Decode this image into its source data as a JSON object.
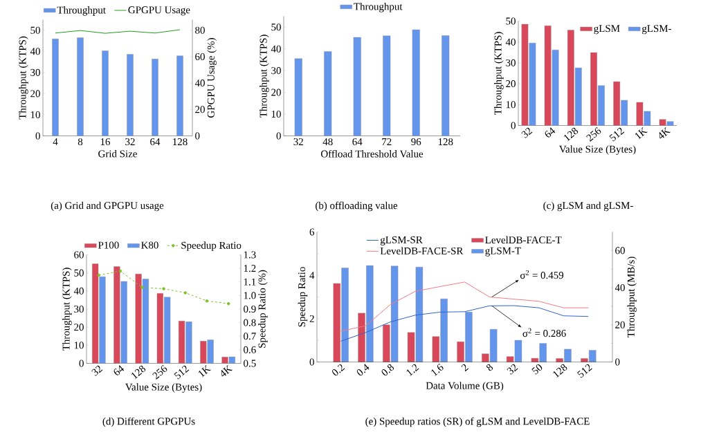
{
  "chart_data": [
    {
      "type": "bar",
      "title": "(a)  Grid and GPGPU usage",
      "xlabel": "Grid Size",
      "ylabel": "Throughput (KTPS)",
      "y2label": "GPGPU Usage (%)",
      "categories": [
        "4",
        "8",
        "16",
        "32",
        "64",
        "128"
      ],
      "series": [
        {
          "name": "Throughput",
          "color": "#6495ed",
          "values": [
            45.9,
            46.5,
            40.3,
            38.6,
            36.4,
            37.9
          ]
        },
        {
          "name": "GPGPU Usage",
          "type": "line",
          "axis": "y2",
          "color": "#1ea01e",
          "values": [
            77.9,
            79.8,
            77.7,
            79.3,
            77.9,
            80.4
          ]
        }
      ],
      "ylim": [
        0,
        55
      ],
      "yticks": [
        0,
        10,
        20,
        30,
        40,
        50
      ],
      "y2lim": [
        0,
        88
      ],
      "y2ticks": [
        0,
        20,
        40,
        60,
        80
      ],
      "legend": "top"
    },
    {
      "type": "bar",
      "title": "(b)  offloading value",
      "xlabel": "Offload Threshold Value",
      "ylabel": "Throughput (KTPS)",
      "categories": [
        "32",
        "48",
        "64",
        "72",
        "96",
        "128"
      ],
      "series": [
        {
          "name": "Throughput",
          "color": "#6495ed",
          "values": [
            35.5,
            38.8,
            45.3,
            46.0,
            48.8,
            46.1
          ]
        }
      ],
      "ylim": [
        0,
        55
      ],
      "yticks": [
        0,
        10,
        20,
        30,
        40,
        50
      ],
      "legend": "top"
    },
    {
      "type": "bar",
      "title": "(c)  gLSM and gLSM-",
      "xlabel": "Value Size (Bytes)",
      "ylabel": "Throughput (KTPS)",
      "categories": [
        "32",
        "64",
        "128",
        "256",
        "512",
        "1K",
        "4K"
      ],
      "series": [
        {
          "name": "gLSM",
          "color": "#d9475a",
          "values": [
            48.5,
            47.8,
            45.7,
            34.9,
            21.0,
            11.1,
            2.9
          ]
        },
        {
          "name": "gLSM-",
          "color": "#6495ed",
          "values": [
            39.5,
            36.2,
            27.6,
            19.1,
            12.1,
            6.8,
            1.9
          ]
        }
      ],
      "ylim": [
        0,
        50
      ],
      "yticks": [
        0,
        10,
        20,
        30,
        40,
        50
      ],
      "legend": "top right"
    },
    {
      "type": "bar",
      "title": "(d)  Different GPGPUs",
      "xlabel": "Value Size (Bytes)",
      "ylabel": "Throughput (KTPS)",
      "y2label": "Speedup Ratio (%)",
      "categories": [
        "32",
        "64",
        "128",
        "256",
        "512",
        "1K",
        "4K"
      ],
      "series": [
        {
          "name": "P100",
          "color": "#d9475a",
          "values": [
            55.0,
            53.5,
            49.4,
            38.7,
            23.4,
            12.3,
            3.5
          ]
        },
        {
          "name": "K80",
          "color": "#6495ed",
          "values": [
            47.9,
            45.3,
            46.6,
            36.6,
            23.0,
            13.0,
            3.6
          ]
        },
        {
          "name": "Speedup Ratio",
          "type": "line",
          "axis": "y2",
          "color": "#7dc12a",
          "marker": "circle",
          "line_style": "dashed",
          "values": [
            1.15,
            1.18,
            1.06,
            1.05,
            1.02,
            0.96,
            0.94
          ]
        }
      ],
      "ylim": [
        0,
        60
      ],
      "yticks": [
        0,
        10,
        20,
        30,
        40,
        50,
        60
      ],
      "y2lim": [
        0.5,
        1.3
      ],
      "y2ticks": [
        0.5,
        0.6,
        0.7,
        0.8,
        0.9,
        {
          "value": 1.0,
          "label": "1.0"
        },
        1.1,
        1.2,
        1.3
      ],
      "legend": "top"
    },
    {
      "type": "line",
      "title": "(e)  Speedup ratios (SR) of gLSM and LevelDB-FACE",
      "xlabel": "Data Volume (GB)",
      "ylabel": "Speedup Ratio",
      "y2label": "Throughput (MB/s)",
      "categories": [
        "0.2",
        "0.4",
        "0.8",
        "1.2",
        "1.6",
        "2",
        "8",
        "32",
        "50",
        "128",
        "512"
      ],
      "series": [
        {
          "name": "gLSM-SR",
          "color": "#2f62c8",
          "values": [
            0.96,
            1.36,
            1.85,
            2.16,
            2.3,
            2.32,
            2.59,
            2.6,
            2.5,
            2.13,
            2.1
          ]
        },
        {
          "name": "LevelDB-FACE-SR",
          "color": "#f47a88",
          "values": [
            1.42,
            1.67,
            2.65,
            3.26,
            3.48,
            3.69,
            3.0,
            2.9,
            2.8,
            2.5,
            2.5
          ]
        },
        {
          "name": "LevelDB-FACE-T",
          "type": "bar",
          "axis": "y2",
          "color": "#d9475a",
          "values": [
            42.3,
            26.3,
            20.0,
            15.9,
            13.7,
            10.9,
            4.4,
            2.9,
            2.0,
            1.9,
            1.9
          ]
        },
        {
          "name": "gLSM-T",
          "type": "bar",
          "axis": "y2",
          "color": "#6495ed",
          "values": [
            50.6,
            51.9,
            51.7,
            51.1,
            34.0,
            26.9,
            17.6,
            11.7,
            10.0,
            6.9,
            6.3
          ]
        }
      ],
      "ylim": [
        0,
        6
      ],
      "yticks": [
        0,
        {
          "value": 1,
          "label": null
        },
        2,
        {
          "value": 3,
          "label": null
        },
        4,
        {
          "value": 5,
          "label": null
        },
        6
      ],
      "y2lim": [
        0,
        70
      ],
      "y2ticks": [
        0,
        {
          "value": 10,
          "label": null
        },
        20,
        {
          "value": 30,
          "label": null
        },
        40,
        {
          "value": 50,
          "label": null
        },
        60
      ],
      "legend": "top",
      "annotations": [
        {
          "text": "σ$^{2}$ = 0.459",
          "x": "8",
          "y": 3.0
        },
        {
          "text": "σ$^{2}$ = 0.286",
          "x": "8",
          "y": 2.59
        }
      ]
    }
  ]
}
